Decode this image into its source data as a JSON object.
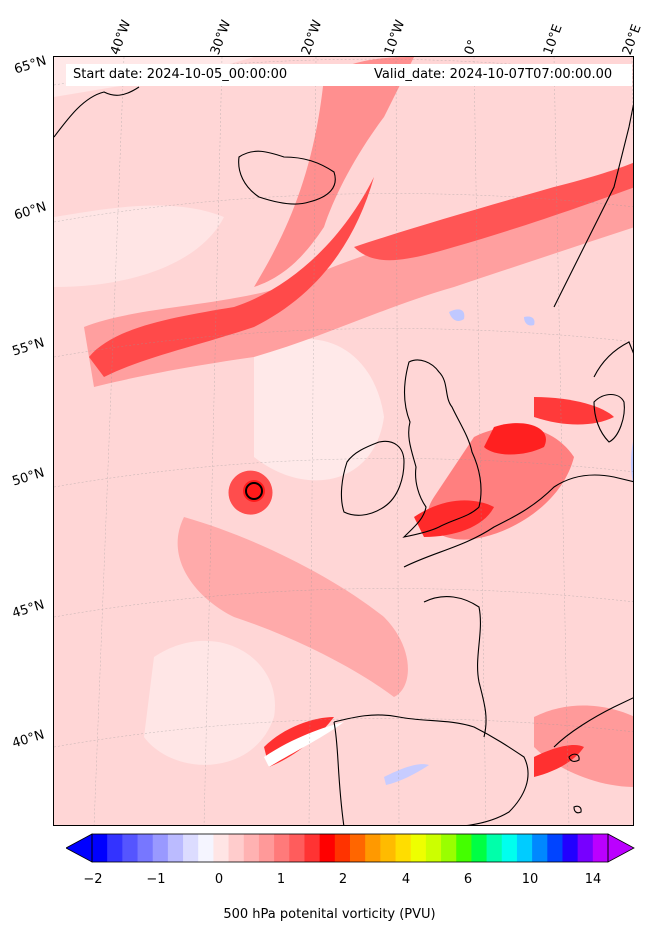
{
  "map": {
    "start_date": "Start date: 2024-10-05_00:00:00",
    "valid_date": "Valid_date: 2024-10-07T07:00:00.00",
    "lon_labels": [
      "40°W",
      "30°W",
      "20°W",
      "10°W",
      "0°",
      "10°E",
      "20°E"
    ],
    "lat_labels": [
      "65°N",
      "60°N",
      "55°N",
      "50°N",
      "45°N",
      "40°N"
    ],
    "background_color": "#ffd9d9"
  },
  "colorbar": {
    "label": "500 hPa potenital vorticity (PVU)",
    "tick_labels": [
      "−2",
      "−1",
      "0",
      "1",
      "2",
      "4",
      "6",
      "10",
      "14"
    ],
    "colors": [
      "#0000ff",
      "#3333ff",
      "#5555ff",
      "#7777ff",
      "#9999ff",
      "#bbbbff",
      "#dcdcff",
      "#f5f5ff",
      "#ffe5e5",
      "#ffcccc",
      "#ffb2b2",
      "#ff9999",
      "#ff7a7a",
      "#ff5c5c",
      "#ff3333",
      "#ff0000",
      "#ff3300",
      "#ff6600",
      "#ff9900",
      "#ffbb00",
      "#ffdd00",
      "#eeff00",
      "#ccff00",
      "#99ff00",
      "#44ff00",
      "#00ff44",
      "#00ffaa",
      "#00ffee",
      "#00ccff",
      "#0088ff",
      "#0044ff",
      "#2200ff",
      "#7700ff",
      "#bb00ff"
    ]
  }
}
